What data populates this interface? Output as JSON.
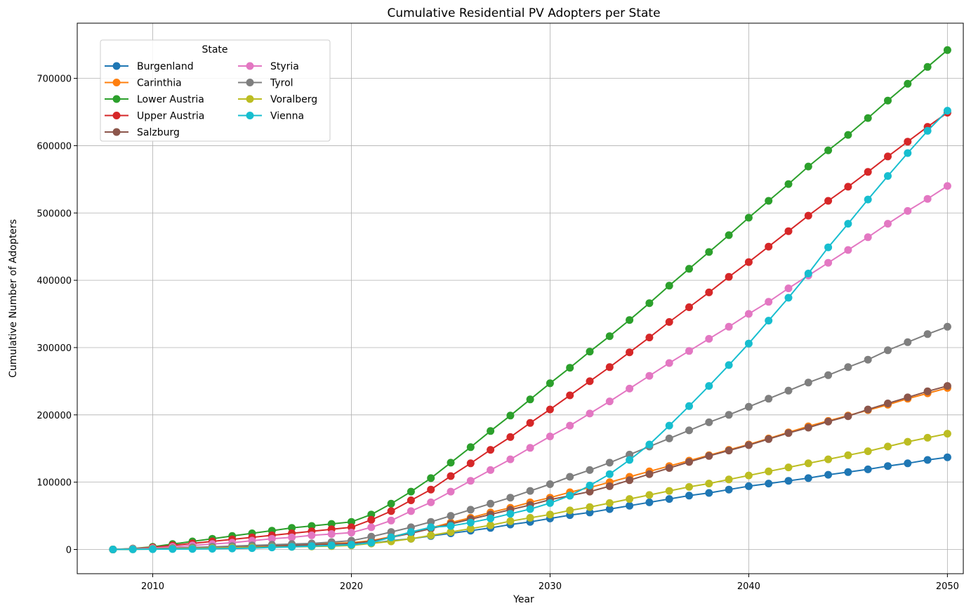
{
  "chart_data": {
    "type": "line",
    "title": "Cumulative Residential PV Adopters per State",
    "xlabel": "Year",
    "ylabel": "Cumulative Number of Adopters",
    "xlim": [
      2006.2,
      2050.8
    ],
    "ylim": [
      -36000,
      782000
    ],
    "xticks": [
      2010,
      2020,
      2030,
      2040,
      2050
    ],
    "yticks": [
      0,
      100000,
      200000,
      300000,
      400000,
      500000,
      600000,
      700000
    ],
    "grid": true,
    "legend": {
      "title": "State",
      "placement": "upper left",
      "columns": 2
    },
    "x": [
      2008,
      2009,
      2010,
      2011,
      2012,
      2013,
      2014,
      2015,
      2016,
      2017,
      2018,
      2019,
      2020,
      2021,
      2022,
      2023,
      2024,
      2025,
      2026,
      2027,
      2028,
      2029,
      2030,
      2031,
      2032,
      2033,
      2034,
      2035,
      2036,
      2037,
      2038,
      2039,
      2040,
      2041,
      2042,
      2043,
      2044,
      2045,
      2046,
      2047,
      2048,
      2049,
      2050
    ],
    "series": [
      {
        "name": "Burgenland",
        "color": "#1f77b4",
        "values": [
          0,
          500,
          1000,
          1500,
          2000,
          2500,
          3000,
          3500,
          4000,
          4500,
          5000,
          6000,
          7000,
          9000,
          13000,
          16000,
          20000,
          24000,
          28000,
          32000,
          37000,
          41000,
          46000,
          51000,
          55000,
          60000,
          65000,
          70000,
          75000,
          80000,
          84000,
          89000,
          94000,
          98000,
          102000,
          106000,
          111000,
          115000,
          119000,
          124000,
          128000,
          133000,
          137000
        ]
      },
      {
        "name": "Carinthia",
        "color": "#ff7f0e",
        "values": [
          0,
          500,
          1000,
          2000,
          2500,
          3000,
          4000,
          5000,
          6000,
          7000,
          8000,
          9000,
          10000,
          13000,
          19000,
          25000,
          32000,
          40000,
          47000,
          55000,
          62000,
          70000,
          77000,
          85000,
          92000,
          100000,
          108000,
          116000,
          124000,
          132000,
          140000,
          148000,
          156000,
          165000,
          174000,
          183000,
          191000,
          199000,
          207000,
          215000,
          224000,
          232000,
          240000
        ]
      },
      {
        "name": "Lower Austria",
        "color": "#2ca02c",
        "values": [
          0,
          1500,
          4000,
          8000,
          12000,
          16000,
          20000,
          24000,
          28000,
          32000,
          35000,
          38000,
          41000,
          52000,
          68000,
          86000,
          106000,
          129000,
          152000,
          176000,
          199000,
          223000,
          247000,
          270000,
          294000,
          317000,
          341000,
          366000,
          392000,
          417000,
          442000,
          467000,
          493000,
          518000,
          543000,
          569000,
          593000,
          616000,
          641000,
          667000,
          692000,
          717000,
          742000
        ]
      },
      {
        "name": "Upper Austria",
        "color": "#d62728",
        "values": [
          0,
          1000,
          3000,
          6000,
          9000,
          12000,
          15000,
          18000,
          21000,
          24000,
          27000,
          30000,
          33000,
          44000,
          57000,
          73000,
          89000,
          109000,
          128000,
          148000,
          167000,
          188000,
          208000,
          229000,
          250000,
          271000,
          293000,
          315000,
          338000,
          360000,
          382000,
          405000,
          427000,
          450000,
          473000,
          496000,
          518000,
          539000,
          561000,
          584000,
          606000,
          628000,
          649000
        ]
      },
      {
        "name": "Salzburg",
        "color": "#8c564b",
        "values": [
          0,
          500,
          1000,
          1500,
          2000,
          2500,
          3000,
          4000,
          5000,
          6000,
          7000,
          8000,
          9000,
          12000,
          18000,
          24000,
          31000,
          38000,
          45000,
          52000,
          59000,
          66000,
          74000,
          80000,
          86000,
          94000,
          103000,
          112000,
          121000,
          130000,
          139000,
          147000,
          155000,
          164000,
          173000,
          181000,
          190000,
          198000,
          208000,
          217000,
          226000,
          235000,
          243000
        ]
      },
      {
        "name": "Styria",
        "color": "#e377c2",
        "values": [
          0,
          1000,
          2000,
          4000,
          6000,
          8000,
          10000,
          13000,
          16000,
          18000,
          21000,
          23000,
          25000,
          33000,
          43000,
          57000,
          70000,
          86000,
          102000,
          118000,
          134000,
          151000,
          168000,
          184000,
          202000,
          220000,
          239000,
          258000,
          277000,
          295000,
          313000,
          331000,
          350000,
          368000,
          388000,
          407000,
          426000,
          445000,
          464000,
          484000,
          503000,
          521000,
          540000
        ]
      },
      {
        "name": "Tyrol",
        "color": "#7f7f7f",
        "values": [
          0,
          500,
          1000,
          2000,
          3000,
          4000,
          5000,
          6000,
          7000,
          8000,
          9000,
          11000,
          13000,
          19000,
          26000,
          33000,
          41000,
          50000,
          59000,
          68000,
          77000,
          87000,
          97000,
          108000,
          118000,
          129000,
          141000,
          153000,
          165000,
          177000,
          189000,
          200000,
          212000,
          224000,
          236000,
          248000,
          259000,
          271000,
          282000,
          296000,
          308000,
          320000,
          331000
        ]
      },
      {
        "name": "Voralberg",
        "color": "#bcbd22",
        "values": [
          0,
          300,
          600,
          1000,
          1500,
          2000,
          2500,
          3000,
          3500,
          4000,
          4500,
          5000,
          6000,
          9000,
          12000,
          16000,
          21000,
          26000,
          31000,
          36000,
          42000,
          47000,
          52000,
          58000,
          63000,
          69000,
          75000,
          81000,
          87000,
          93000,
          98000,
          104000,
          110000,
          116000,
          122000,
          128000,
          134000,
          140000,
          146000,
          153000,
          160000,
          166000,
          172000
        ]
      },
      {
        "name": "Vienna",
        "color": "#17becf",
        "values": [
          0,
          200,
          400,
          600,
          800,
          1000,
          1500,
          2000,
          3000,
          4000,
          5000,
          6000,
          7000,
          10000,
          18000,
          26000,
          33000,
          35000,
          40000,
          46000,
          53000,
          60000,
          69000,
          80000,
          95000,
          112000,
          133000,
          156000,
          184000,
          213000,
          243000,
          274000,
          306000,
          340000,
          374000,
          410000,
          449000,
          484000,
          520000,
          555000,
          589000,
          622000,
          652000
        ]
      }
    ]
  }
}
